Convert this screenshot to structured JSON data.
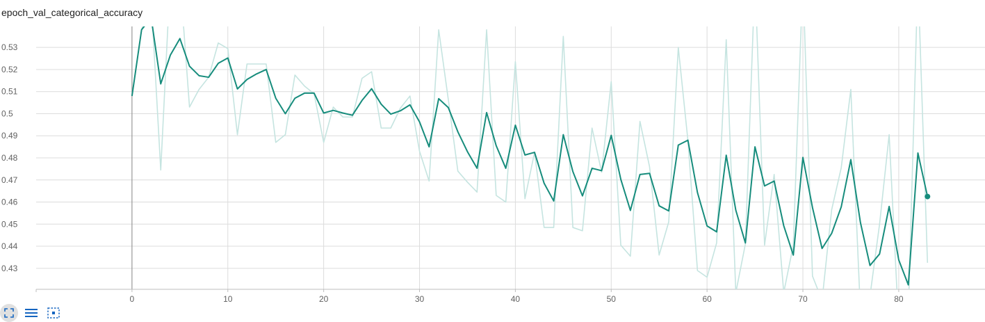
{
  "chart_data": {
    "type": "line",
    "title": "epoch_val_categorical_accuracy",
    "xlabel": "",
    "ylabel": "",
    "xlim": [
      -10,
      89
    ],
    "ylim": [
      0.4205,
      0.5395
    ],
    "x_ticks": [
      0,
      10,
      20,
      30,
      40,
      50,
      60,
      70,
      80
    ],
    "y_ticks": [
      0.43,
      0.44,
      0.45,
      0.46,
      0.47,
      0.48,
      0.49,
      0.5,
      0.51,
      0.52,
      0.53
    ],
    "y_tick_labels": [
      "0.43",
      "0.44",
      "0.45",
      "0.46",
      "0.47",
      "0.48",
      "0.49",
      "0.5",
      "0.51",
      "0.52",
      "0.53"
    ],
    "grid": true,
    "series": [
      {
        "role": "raw",
        "color": "#c5e4e0",
        "x": [
          0,
          1,
          2,
          3,
          4,
          5,
          6,
          7,
          8,
          9,
          10,
          11,
          12,
          13,
          14,
          15,
          16,
          17,
          18,
          19,
          20,
          21,
          22,
          23,
          24,
          25,
          26,
          27,
          28,
          29,
          30,
          31,
          32,
          33,
          34,
          35,
          36,
          37,
          38,
          39,
          40,
          41,
          42,
          43,
          44,
          45,
          46,
          47,
          48,
          49,
          50,
          51,
          52,
          53,
          54,
          55,
          56,
          57,
          58,
          59,
          60,
          61,
          62,
          63,
          64,
          65,
          66,
          67,
          68,
          69,
          70,
          71,
          72,
          73,
          74,
          75,
          76,
          77,
          78,
          79,
          80,
          81,
          82,
          83
        ],
        "values": [
          0.508,
          0.538,
          0.552,
          0.4745,
          0.562,
          0.562,
          0.503,
          0.511,
          0.5165,
          0.532,
          0.5295,
          0.4905,
          0.5225,
          0.5225,
          0.5225,
          0.487,
          0.4905,
          0.5175,
          0.5125,
          0.509,
          0.487,
          0.503,
          0.4985,
          0.4985,
          0.516,
          0.519,
          0.4935,
          0.4935,
          0.5025,
          0.508,
          0.483,
          0.4695,
          0.538,
          0.5065,
          0.474,
          0.469,
          0.4645,
          0.538,
          0.463,
          0.46,
          0.5235,
          0.4615,
          0.4825,
          0.4485,
          0.4485,
          0.535,
          0.4485,
          0.447,
          0.4935,
          0.4735,
          0.5145,
          0.4405,
          0.4355,
          0.4965,
          0.476,
          0.436,
          0.451,
          0.53,
          0.488,
          0.429,
          0.426,
          0.4415,
          0.5335,
          0.419,
          0.441,
          0.562,
          0.4405,
          0.4725,
          0.419,
          0.4405,
          0.562,
          0.4265,
          0.4155,
          0.4565,
          0.4755,
          0.511,
          0.4105,
          0.4175,
          0.45,
          0.4905,
          0.4035,
          0.4095,
          0.562,
          0.4325
        ]
      },
      {
        "role": "smoothed",
        "color": "#168c7c",
        "x": [
          0,
          1,
          2,
          3,
          4,
          5,
          6,
          7,
          8,
          9,
          10,
          11,
          12,
          13,
          14,
          15,
          16,
          17,
          18,
          19,
          20,
          21,
          22,
          23,
          24,
          25,
          26,
          27,
          28,
          29,
          30,
          31,
          32,
          33,
          34,
          35,
          36,
          37,
          38,
          39,
          40,
          41,
          42,
          43,
          44,
          45,
          46,
          47,
          48,
          49,
          50,
          51,
          52,
          53,
          54,
          55,
          56,
          57,
          58,
          59,
          60,
          61,
          62,
          63,
          64,
          65,
          66,
          67,
          68,
          69,
          70,
          71,
          72,
          73,
          74,
          75,
          76,
          77,
          78,
          79,
          80,
          81,
          82,
          83
        ],
        "values": [
          0.508,
          0.538,
          0.5435,
          0.5135,
          0.5265,
          0.534,
          0.5215,
          0.5172,
          0.5165,
          0.5228,
          0.5252,
          0.5112,
          0.5155,
          0.518,
          0.52,
          0.507,
          0.5,
          0.507,
          0.5093,
          0.5093,
          0.5003,
          0.5015,
          0.5003,
          0.4993,
          0.506,
          0.5113,
          0.5043,
          0.4998,
          0.5013,
          0.504,
          0.4963,
          0.485,
          0.5068,
          0.5028,
          0.4918,
          0.4828,
          0.4753,
          0.5005,
          0.4855,
          0.4753,
          0.4948,
          0.4813,
          0.4825,
          0.4685,
          0.4605,
          0.4905,
          0.4738,
          0.4628,
          0.4753,
          0.4742,
          0.4902,
          0.4703,
          0.4562,
          0.4725,
          0.473,
          0.4583,
          0.456,
          0.4858,
          0.488,
          0.4643,
          0.4492,
          0.4465,
          0.4812,
          0.4563,
          0.4415,
          0.485,
          0.4673,
          0.4695,
          0.4493,
          0.436,
          0.4802,
          0.4575,
          0.439,
          0.4458,
          0.4578,
          0.4792,
          0.4508,
          0.4313,
          0.4365,
          0.458,
          0.4338,
          0.4225,
          0.4822,
          0.4625
        ]
      }
    ]
  },
  "icons": [
    "fullscreen-icon",
    "legend-list-icon",
    "fit-domain-icon"
  ]
}
